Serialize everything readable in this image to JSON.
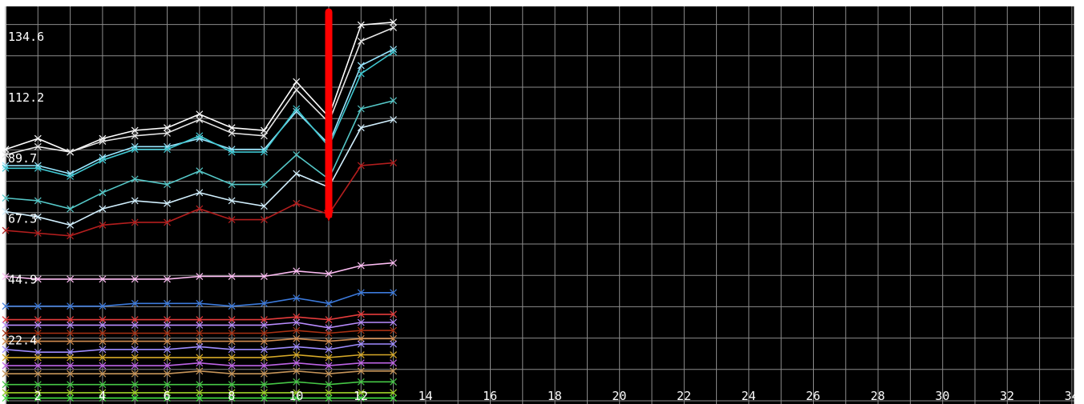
{
  "chart_data": {
    "type": "line",
    "title": "",
    "xlabel": "",
    "ylabel": "",
    "grid": true,
    "background": "#000000",
    "grid_color": "#8c8c8c",
    "text_color": "#ffffff",
    "xlim": [
      1,
      34
    ],
    "ylim": [
      0,
      145
    ],
    "x_ticks": [
      2,
      4,
      6,
      8,
      10,
      12,
      14,
      16,
      18,
      20,
      22,
      24,
      26,
      28,
      30,
      32,
      34
    ],
    "y_ticks": [
      22.4,
      44.9,
      67.3,
      89.7,
      112.2,
      134.6
    ],
    "x": [
      1,
      2,
      3,
      4,
      5,
      6,
      7,
      8,
      9,
      10,
      11,
      12,
      13
    ],
    "series": [
      {
        "color": "#ffffff",
        "values": [
          93,
          97,
          92,
          97,
          100,
          101,
          106,
          101,
          100,
          118,
          105,
          139,
          140
        ]
      },
      {
        "color": "#e6e6e6",
        "values": [
          91,
          94,
          92,
          96,
          98,
          99,
          104,
          99,
          98,
          115,
          103,
          133,
          138
        ]
      },
      {
        "color": "#99e6ff",
        "values": [
          87,
          87,
          84,
          90,
          94,
          94,
          97,
          93,
          93,
          107,
          95,
          124,
          130
        ]
      },
      {
        "color": "#40c8d2",
        "values": [
          86,
          86,
          83,
          89,
          93,
          93,
          98,
          92,
          92,
          108,
          94,
          121,
          129
        ]
      },
      {
        "color": "#55c8c8",
        "values": [
          75,
          74,
          71,
          77,
          82,
          80,
          85,
          80,
          80,
          91,
          82,
          108,
          111
        ]
      },
      {
        "color": "#d2f0ff",
        "values": [
          70,
          68,
          65,
          71,
          74,
          73,
          77,
          74,
          72,
          84,
          79,
          101,
          104
        ]
      },
      {
        "color": "#b41e1e",
        "values": [
          63,
          62,
          61,
          65,
          66,
          66,
          71,
          67,
          67,
          73,
          69,
          87,
          88
        ]
      },
      {
        "color": "#ffbef5",
        "values": [
          46,
          45,
          45,
          45,
          45,
          45,
          46,
          46,
          46,
          48,
          47,
          50,
          51
        ]
      },
      {
        "color": "#3c7adc",
        "values": [
          35,
          35,
          35,
          35,
          36,
          36,
          36,
          35,
          36,
          38,
          36,
          40,
          40
        ]
      },
      {
        "color": "#e63c3c",
        "values": [
          30,
          30,
          30,
          30,
          30,
          30,
          30,
          30,
          30,
          31,
          30,
          32,
          32
        ]
      },
      {
        "color": "#b98cff",
        "values": [
          28,
          28,
          28,
          28,
          28,
          28,
          28,
          28,
          28,
          29,
          27,
          29,
          29
        ]
      },
      {
        "color": "#aa3214",
        "values": [
          25,
          25,
          25,
          25,
          25,
          25,
          25,
          25,
          25,
          26,
          25,
          26,
          26
        ]
      },
      {
        "color": "#d28c50",
        "values": [
          22,
          22,
          22,
          22,
          22,
          22,
          22,
          22,
          22,
          23,
          22,
          23,
          23
        ]
      },
      {
        "color": "#a08cff",
        "values": [
          19,
          18,
          18,
          19,
          19,
          19,
          20,
          19,
          19,
          20,
          19,
          21,
          21
        ]
      },
      {
        "color": "#d7aa28",
        "values": [
          16,
          16,
          16,
          16,
          16,
          16,
          16,
          16,
          16,
          17,
          16,
          17,
          17
        ]
      },
      {
        "color": "#be64e6",
        "values": [
          13,
          13,
          13,
          13,
          13,
          13,
          14,
          13,
          13,
          14,
          13,
          14,
          14
        ]
      },
      {
        "color": "#c8965a",
        "values": [
          10,
          10,
          10,
          10,
          10,
          10,
          11,
          10,
          10,
          11,
          10,
          11,
          11
        ]
      },
      {
        "color": "#46c846",
        "values": [
          6,
          6,
          6,
          6,
          6,
          6,
          6,
          6,
          6,
          7,
          6,
          7,
          7
        ]
      },
      {
        "color": "#a0d228",
        "values": [
          3,
          3,
          3,
          3,
          3,
          3,
          3,
          3,
          3,
          3,
          3,
          3,
          3
        ]
      },
      {
        "color": "#46e646",
        "values": [
          1,
          1,
          1,
          1,
          1,
          1,
          1,
          1,
          1,
          1,
          1,
          1,
          1
        ]
      }
    ],
    "annotation": {
      "type": "vertical-marker",
      "color": "#ff0000",
      "x": 11,
      "y_from": 145,
      "y_to": 67
    }
  }
}
